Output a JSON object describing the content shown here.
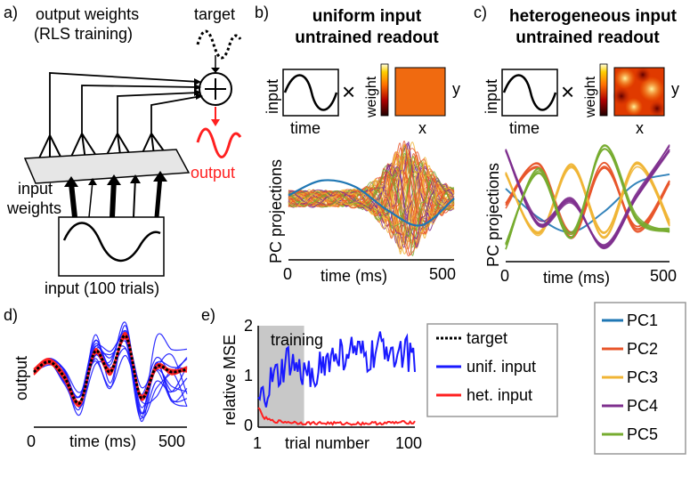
{
  "panel_labels": {
    "a": "a)",
    "b": "b)",
    "c": "c)",
    "d": "d)",
    "e": "e)"
  },
  "panel_a": {
    "output_weights_line1": "output weights",
    "output_weights_line2": "(RLS training)",
    "target": "target",
    "output": "output",
    "input_weights_line1": "input",
    "input_weights_line2": "weights",
    "input_caption": "input (100 trials)",
    "sum_symbol": "+"
  },
  "panel_b": {
    "title_line1": "uniform input",
    "title_line2": "untrained readout",
    "inset_input_label": "input",
    "inset_time_label": "time",
    "inset_weight_label": "weight",
    "inset_x_label": "x",
    "inset_y_label": "y",
    "times_symbol": "×",
    "heatmap_color": "#f06a10"
  },
  "panel_c": {
    "title_line1": "heterogeneous input",
    "title_line2": "untrained readout",
    "inset_input_label": "input",
    "inset_time_label": "time",
    "inset_weight_label": "weight",
    "inset_x_label": "x",
    "inset_y_label": "y",
    "times_symbol": "×"
  },
  "chart_data": [
    {
      "id": "b",
      "type": "line",
      "ylabel": "PC projections",
      "xlabel": "time (ms)",
      "xticks": [
        "0",
        "500"
      ],
      "xlim": [
        0,
        500
      ],
      "ylim": [
        -1,
        1
      ],
      "series": [
        {
          "name": "PC1",
          "x": [
            0,
            100,
            200,
            300,
            400,
            500
          ],
          "values": [
            0.05,
            0.3,
            0.2,
            -0.2,
            -0.45,
            0.0
          ]
        }
      ]
    },
    {
      "id": "c",
      "type": "line",
      "ylabel": "PC projections",
      "xlabel": "time (ms)",
      "xticks": [
        "0",
        "500"
      ],
      "xlim": [
        0,
        500
      ],
      "ylim": [
        -1,
        1
      ],
      "series": [
        {
          "name": "PC1",
          "x": [
            0,
            100,
            200,
            300,
            400,
            500
          ],
          "values": [
            0.2,
            -0.3,
            -0.55,
            -0.2,
            0.3,
            0.45
          ]
        },
        {
          "name": "PC2",
          "x": [
            0,
            100,
            200,
            300,
            400,
            500
          ],
          "values": [
            -0.1,
            0.6,
            -0.6,
            0.6,
            -0.5,
            0.3
          ]
        },
        {
          "name": "PC3",
          "x": [
            0,
            100,
            200,
            300,
            400,
            500
          ],
          "values": [
            0.5,
            -0.6,
            0.6,
            -0.6,
            0.6,
            -0.4
          ]
        },
        {
          "name": "PC4",
          "x": [
            0,
            100,
            200,
            300,
            400,
            500
          ],
          "values": [
            0.9,
            -0.4,
            0.0,
            -0.8,
            0.1,
            0.9
          ]
        },
        {
          "name": "PC5",
          "x": [
            0,
            100,
            200,
            300,
            400,
            500
          ],
          "values": [
            -0.8,
            0.5,
            -0.6,
            0.9,
            -0.3,
            -0.5
          ]
        }
      ]
    },
    {
      "id": "d",
      "type": "line",
      "ylabel": "output",
      "xlabel": "time (ms)",
      "xticks": [
        "0",
        "500"
      ],
      "xlim": [
        0,
        500
      ],
      "ylim": [
        -1,
        1
      ],
      "series": [
        {
          "name": "target",
          "x": [
            0,
            50,
            100,
            150,
            200,
            250,
            300,
            350,
            400,
            450,
            500
          ],
          "values": [
            0.0,
            0.2,
            -0.1,
            -0.6,
            0.4,
            0.0,
            0.7,
            -0.5,
            0.1,
            0.0,
            0.05
          ]
        }
      ]
    },
    {
      "id": "e",
      "type": "line",
      "ylabel": "relative MSE",
      "xlabel": "trial number",
      "xticks": [
        "1",
        "100"
      ],
      "yticks": [
        "0",
        "1",
        "2"
      ],
      "xlim": [
        1,
        100
      ],
      "ylim": [
        0,
        2
      ],
      "annotation": "training",
      "training_end_trial": 30,
      "series": [
        {
          "name": "unif. input",
          "x": [
            1,
            5,
            10,
            15,
            20,
            25,
            30,
            40,
            50,
            60,
            70,
            80,
            90,
            100
          ],
          "values": [
            0.4,
            0.6,
            0.9,
            1.0,
            1.3,
            1.1,
            1.0,
            1.2,
            1.4,
            1.5,
            1.3,
            1.6,
            1.5,
            1.4
          ]
        },
        {
          "name": "het. input",
          "x": [
            1,
            3,
            5,
            10,
            20,
            30,
            40,
            60,
            80,
            100
          ],
          "values": [
            0.4,
            0.25,
            0.18,
            0.12,
            0.1,
            0.08,
            0.08,
            0.07,
            0.08,
            0.1
          ]
        }
      ]
    }
  ],
  "legend_e": {
    "target": "target",
    "unif": "unif. input",
    "het": "het. input"
  },
  "legend_pc": [
    "PC1",
    "PC2",
    "PC3",
    "PC4",
    "PC5"
  ],
  "colors": {
    "PC1": "#1f77b4",
    "PC2": "#e8552a",
    "PC3": "#f0b535",
    "PC4": "#7e2f8e",
    "PC5": "#77ac30",
    "unif": "#1a1aff",
    "het": "#ff2020",
    "target": "#000000",
    "output": "#ff2020",
    "shade": "#c8c8c8"
  }
}
